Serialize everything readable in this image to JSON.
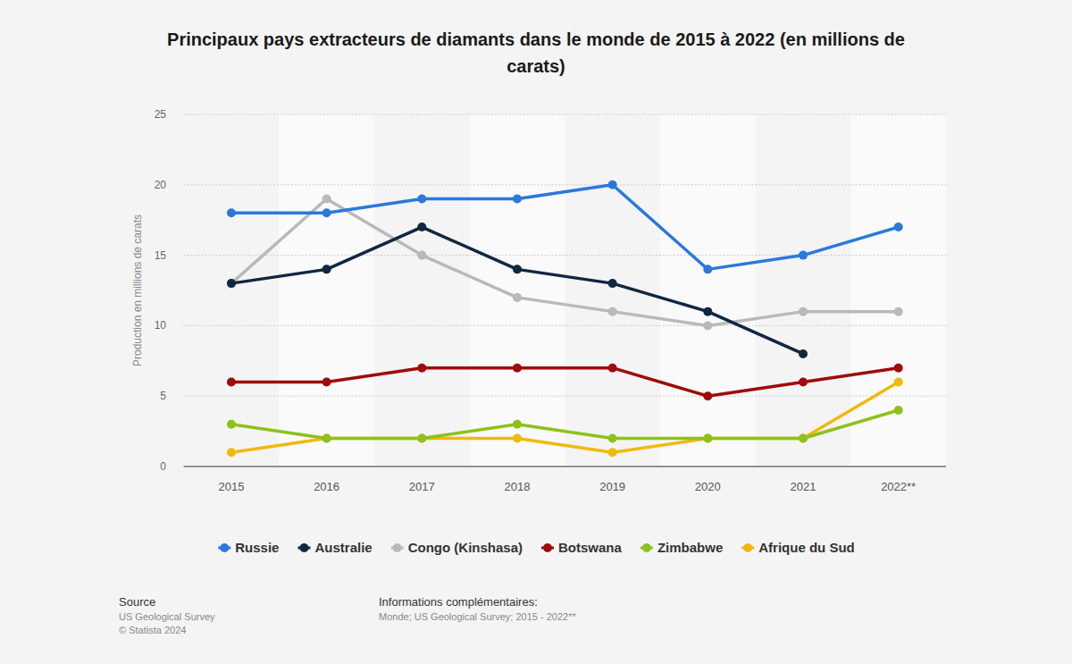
{
  "chart_data": {
    "type": "line",
    "title": "Principaux pays extracteurs de diamants dans le monde de 2015 à 2022 (en millions de carats)",
    "y_label": "Production en millions de carats",
    "categories": [
      "2015",
      "2016",
      "2017",
      "2018",
      "2019",
      "2020",
      "2021",
      "2022**"
    ],
    "series": [
      {
        "name": "Russie",
        "color": "#2a78dc",
        "values": [
          18,
          18,
          19,
          19,
          20,
          14,
          15,
          17
        ]
      },
      {
        "name": "Australie",
        "color": "#10273f",
        "values": [
          13,
          14,
          17,
          14,
          13,
          11,
          8,
          null
        ]
      },
      {
        "name": "Congo (Kinshasa)",
        "color": "#b9b9b9",
        "values": [
          13,
          19,
          15,
          12,
          11,
          10,
          11,
          11
        ]
      },
      {
        "name": "Botswana",
        "color": "#a00b0b",
        "values": [
          6,
          6,
          7,
          7,
          7,
          5,
          6,
          7
        ]
      },
      {
        "name": "Zimbabwe",
        "color": "#8dc21b",
        "values": [
          3,
          2,
          2,
          3,
          2,
          2,
          2,
          4
        ]
      },
      {
        "name": "Afrique du Sud",
        "color": "#f0b90c",
        "values": [
          1,
          2,
          2,
          2,
          1,
          2,
          2,
          6
        ]
      }
    ],
    "ylim": [
      0,
      25
    ],
    "yticks": [
      0,
      5,
      10,
      15,
      20,
      25
    ],
    "grid": true,
    "legend": "bottom",
    "marker": "circle",
    "annotations": [
      "Source",
      "US Geological Survey",
      "© Statista 2024",
      "Informations complémentaires:",
      "Monde; US Geological Survey; 2015 - 2022**"
    ]
  }
}
